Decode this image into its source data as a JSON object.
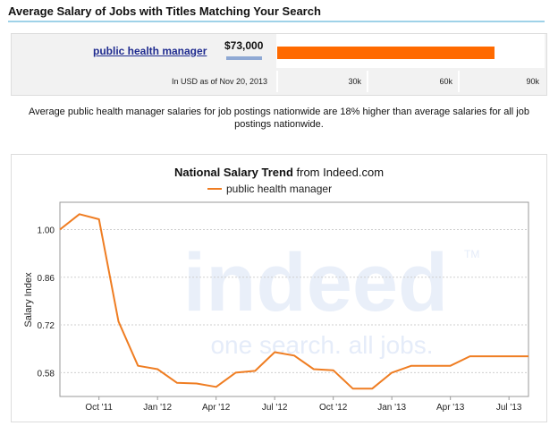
{
  "header": {
    "title": "Average Salary of Jobs with Titles Matching Your Search"
  },
  "salary": {
    "job_title": "public health manager",
    "value_label": "$73,000",
    "value": 73000,
    "scale_max": 90000,
    "currency_note": "In USD as of Nov 20, 2013",
    "scale_ticks": [
      "30k",
      "60k",
      "90k"
    ],
    "bar_color": "#ff6a00"
  },
  "comparison_note": "Average public health manager salaries for job postings nationwide are 18% higher than average salaries for all job postings nationwide.",
  "chart_data": {
    "type": "line",
    "title_bold": "National Salary Trend",
    "title_rest": " from Indeed.com",
    "series": [
      {
        "name": "public health manager",
        "color": "#ef7d22",
        "x": [
          "2011-08",
          "2011-09",
          "2011-10",
          "2011-11",
          "2011-12",
          "2012-01",
          "2012-02",
          "2012-03",
          "2012-04",
          "2012-05",
          "2012-06",
          "2012-07",
          "2012-08",
          "2012-09",
          "2012-10",
          "2012-11",
          "2012-12",
          "2013-01",
          "2013-02",
          "2013-03",
          "2013-04",
          "2013-05",
          "2013-06",
          "2013-07",
          "2013-08"
        ],
        "values": [
          1.0,
          1.045,
          1.03,
          0.73,
          0.6,
          0.59,
          0.55,
          0.548,
          0.538,
          0.58,
          0.585,
          0.64,
          0.63,
          0.59,
          0.587,
          0.533,
          0.533,
          0.58,
          0.6,
          0.6,
          0.6,
          0.628,
          0.628,
          0.628,
          0.628
        ]
      }
    ],
    "xticks": [
      "Oct '11",
      "Jan '12",
      "Apr '12",
      "Jul '12",
      "Oct '12",
      "Jan '13",
      "Apr '13",
      "Jul '13"
    ],
    "xtick_months": [
      "2011-10",
      "2012-01",
      "2012-04",
      "2012-07",
      "2012-10",
      "2013-01",
      "2013-04",
      "2013-07"
    ],
    "ylabel": "Salary Index",
    "yticks": [
      "1.00",
      "0.86",
      "0.72",
      "0.58"
    ],
    "ytick_values": [
      1.0,
      0.86,
      0.72,
      0.58
    ],
    "ylim": [
      0.51,
      1.08
    ],
    "grid": true,
    "watermark": {
      "logo": "indeed",
      "tagline": "one search. all jobs.",
      "tm": "TM",
      "color": "#e5ecf9"
    }
  }
}
